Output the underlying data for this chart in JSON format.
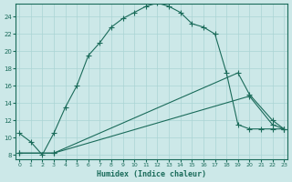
{
  "xlabel": "Humidex (Indice chaleur)",
  "ylabel": "",
  "bg_color": "#cce8e8",
  "grid_color": "#aad4d4",
  "line_color": "#1a6b5a",
  "x_ticks": [
    0,
    1,
    2,
    3,
    4,
    5,
    6,
    7,
    8,
    9,
    10,
    11,
    12,
    13,
    14,
    15,
    16,
    17,
    18,
    19,
    20,
    21,
    22,
    23
  ],
  "y_ticks": [
    8,
    10,
    12,
    14,
    16,
    18,
    20,
    22,
    24
  ],
  "xlim": [
    -0.3,
    23.3
  ],
  "ylim": [
    7.5,
    25.5
  ],
  "line1_x": [
    0,
    1,
    2,
    3,
    4,
    5,
    6,
    7,
    8,
    9,
    10,
    11,
    12,
    13,
    14,
    15,
    16,
    17,
    18,
    19,
    20,
    21,
    22,
    23
  ],
  "line1_y": [
    10.5,
    9.5,
    8.0,
    10.5,
    13.5,
    16.0,
    19.5,
    21.0,
    22.8,
    23.8,
    24.5,
    25.2,
    25.6,
    25.2,
    24.5,
    23.2,
    22.8,
    22.0,
    17.5,
    11.5,
    11.0,
    11.0,
    11.0,
    11.0
  ],
  "line2_x": [
    0,
    3,
    19,
    20,
    22,
    23
  ],
  "line2_y": [
    8.2,
    8.2,
    17.5,
    15.0,
    12.0,
    11.0
  ],
  "line3_x": [
    0,
    3,
    20,
    22,
    23
  ],
  "line3_y": [
    8.2,
    8.2,
    14.8,
    11.5,
    11.0
  ]
}
